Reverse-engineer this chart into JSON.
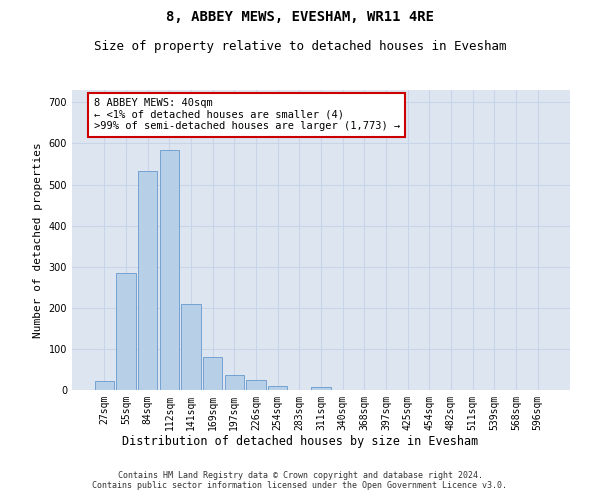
{
  "title": "8, ABBEY MEWS, EVESHAM, WR11 4RE",
  "subtitle": "Size of property relative to detached houses in Evesham",
  "xlabel": "Distribution of detached houses by size in Evesham",
  "ylabel": "Number of detached properties",
  "categories": [
    "27sqm",
    "55sqm",
    "84sqm",
    "112sqm",
    "141sqm",
    "169sqm",
    "197sqm",
    "226sqm",
    "254sqm",
    "283sqm",
    "311sqm",
    "340sqm",
    "368sqm",
    "397sqm",
    "425sqm",
    "454sqm",
    "482sqm",
    "511sqm",
    "539sqm",
    "568sqm",
    "596sqm"
  ],
  "values": [
    22,
    285,
    533,
    585,
    210,
    80,
    37,
    24,
    10,
    0,
    8,
    0,
    0,
    0,
    0,
    0,
    0,
    0,
    0,
    0,
    0
  ],
  "bar_color": "#b8cfe8",
  "bar_edge_color": "#6699cc",
  "annotation_box_text": "8 ABBEY MEWS: 40sqm\n← <1% of detached houses are smaller (4)\n>99% of semi-detached houses are larger (1,773) →",
  "annotation_box_color": "#ffffff",
  "annotation_box_edge_color": "#cc0000",
  "ylim": [
    0,
    730
  ],
  "yticks": [
    0,
    100,
    200,
    300,
    400,
    500,
    600,
    700
  ],
  "grid_color": "#c8d4e8",
  "background_color": "#dde5f0",
  "footer_line1": "Contains HM Land Registry data © Crown copyright and database right 2024.",
  "footer_line2": "Contains public sector information licensed under the Open Government Licence v3.0.",
  "title_fontsize": 10,
  "subtitle_fontsize": 9,
  "tick_fontsize": 7,
  "ylabel_fontsize": 8,
  "xlabel_fontsize": 8.5,
  "annotation_fontsize": 7.5,
  "footer_fontsize": 6
}
